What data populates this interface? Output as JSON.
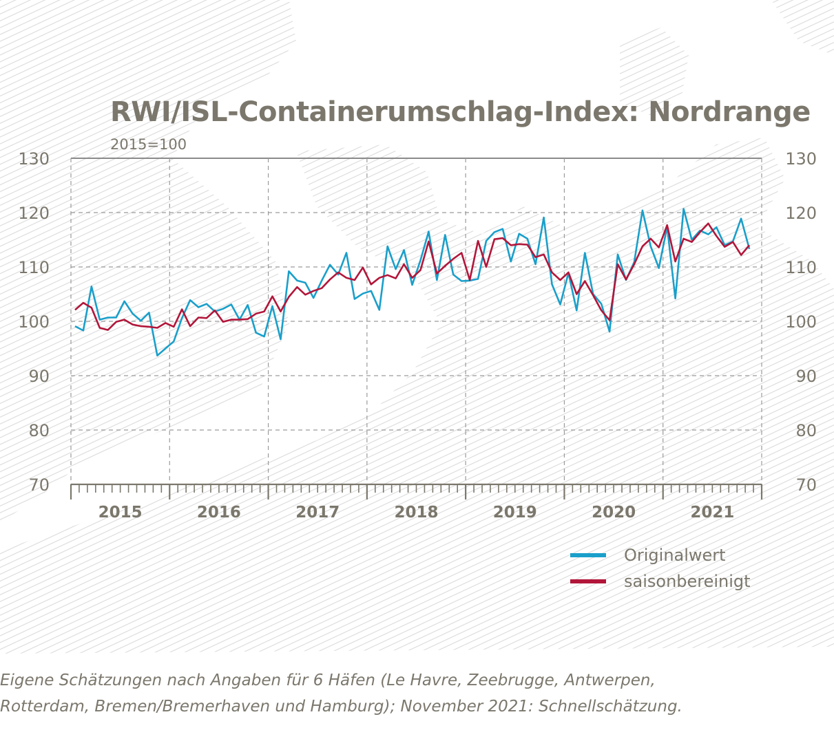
{
  "title": "RWI/ISL-Containerumschlag-Index: Nordrange",
  "subtitle": "2015=100",
  "footnote_lines": [
    "Eigene Schätzungen nach Angaben für 6 Häfen (Le Havre, Zeebrugge, Antwerpen,",
    "Rotterdam, Bremen/Bremerhaven und Hamburg); November 2021: Schnellschätzung."
  ],
  "colors": {
    "original": "#1a9fca",
    "seasonal": "#b2163a",
    "text": "#7b776c",
    "grid": "#9a9a9a",
    "hatch": "#dadada"
  },
  "chart_data": {
    "type": "line",
    "title": "RWI/ISL-Containerumschlag-Index: Nordrange",
    "subtitle": "2015=100",
    "ylim": [
      70,
      130
    ],
    "yticks": [
      70,
      80,
      90,
      100,
      110,
      120,
      130
    ],
    "y_tick_labels": [
      "70",
      "80",
      "90",
      "100",
      "110",
      "120",
      "130"
    ],
    "x_start": "2015-01",
    "x_end": "2021-11",
    "x_year_labels": [
      "2015",
      "2016",
      "2017",
      "2018",
      "2019",
      "2020",
      "2021"
    ],
    "grid": true,
    "legend_position": "bottom-right",
    "series": [
      {
        "name": "Originalwert",
        "color": "#1a9fca",
        "values": [
          99.1,
          98.3,
          106.4,
          100.3,
          100.7,
          100.7,
          103.7,
          101.4,
          100.1,
          101.6,
          93.7,
          95.0,
          96.3,
          100.6,
          103.9,
          102.6,
          103.2,
          101.8,
          102.3,
          103.1,
          100.3,
          103.0,
          97.9,
          97.2,
          102.8,
          96.7,
          109.2,
          107.5,
          107.1,
          104.3,
          107.5,
          110.4,
          108.6,
          112.6,
          104.1,
          105.1,
          105.6,
          102.1,
          113.8,
          109.6,
          113.1,
          106.7,
          111.2,
          116.5,
          107.6,
          115.9,
          108.6,
          107.4,
          107.5,
          107.8,
          114.8,
          116.4,
          117.0,
          111.0,
          116.1,
          115.2,
          110.5,
          119.1,
          106.8,
          103.1,
          108.9,
          102.0,
          112.6,
          105.0,
          103.2,
          98.1,
          112.3,
          107.6,
          110.9,
          120.4,
          113.8,
          109.8,
          117.4,
          104.2,
          120.7,
          115.0,
          116.7,
          116.0,
          117.3,
          114.0,
          114.7,
          118.9,
          113.3
        ]
      },
      {
        "name": "saisonbereinigt",
        "color": "#b2163a",
        "values": [
          102.1,
          103.4,
          102.5,
          98.8,
          98.4,
          99.9,
          100.3,
          99.4,
          99.1,
          99.0,
          98.8,
          99.7,
          99.0,
          102.2,
          99.1,
          100.7,
          100.6,
          102.0,
          99.9,
          100.3,
          100.3,
          100.4,
          101.4,
          101.8,
          104.6,
          101.8,
          104.5,
          106.3,
          104.9,
          105.6,
          106.1,
          107.7,
          109.0,
          108.0,
          107.6,
          109.9,
          106.8,
          108.0,
          108.5,
          107.9,
          110.5,
          108.0,
          109.4,
          114.7,
          108.8,
          110.2,
          111.5,
          112.6,
          107.6,
          114.8,
          110.0,
          115.1,
          115.3,
          114.0,
          114.2,
          114.1,
          111.8,
          112.3,
          109.0,
          107.6,
          109.0,
          105.0,
          107.4,
          104.8,
          102.0,
          100.2,
          110.5,
          107.7,
          110.5,
          113.8,
          115.2,
          113.6,
          117.7,
          111.0,
          115.2,
          114.6,
          116.4,
          118.0,
          115.7,
          113.7,
          114.6,
          112.2,
          114.0
        ]
      }
    ]
  }
}
